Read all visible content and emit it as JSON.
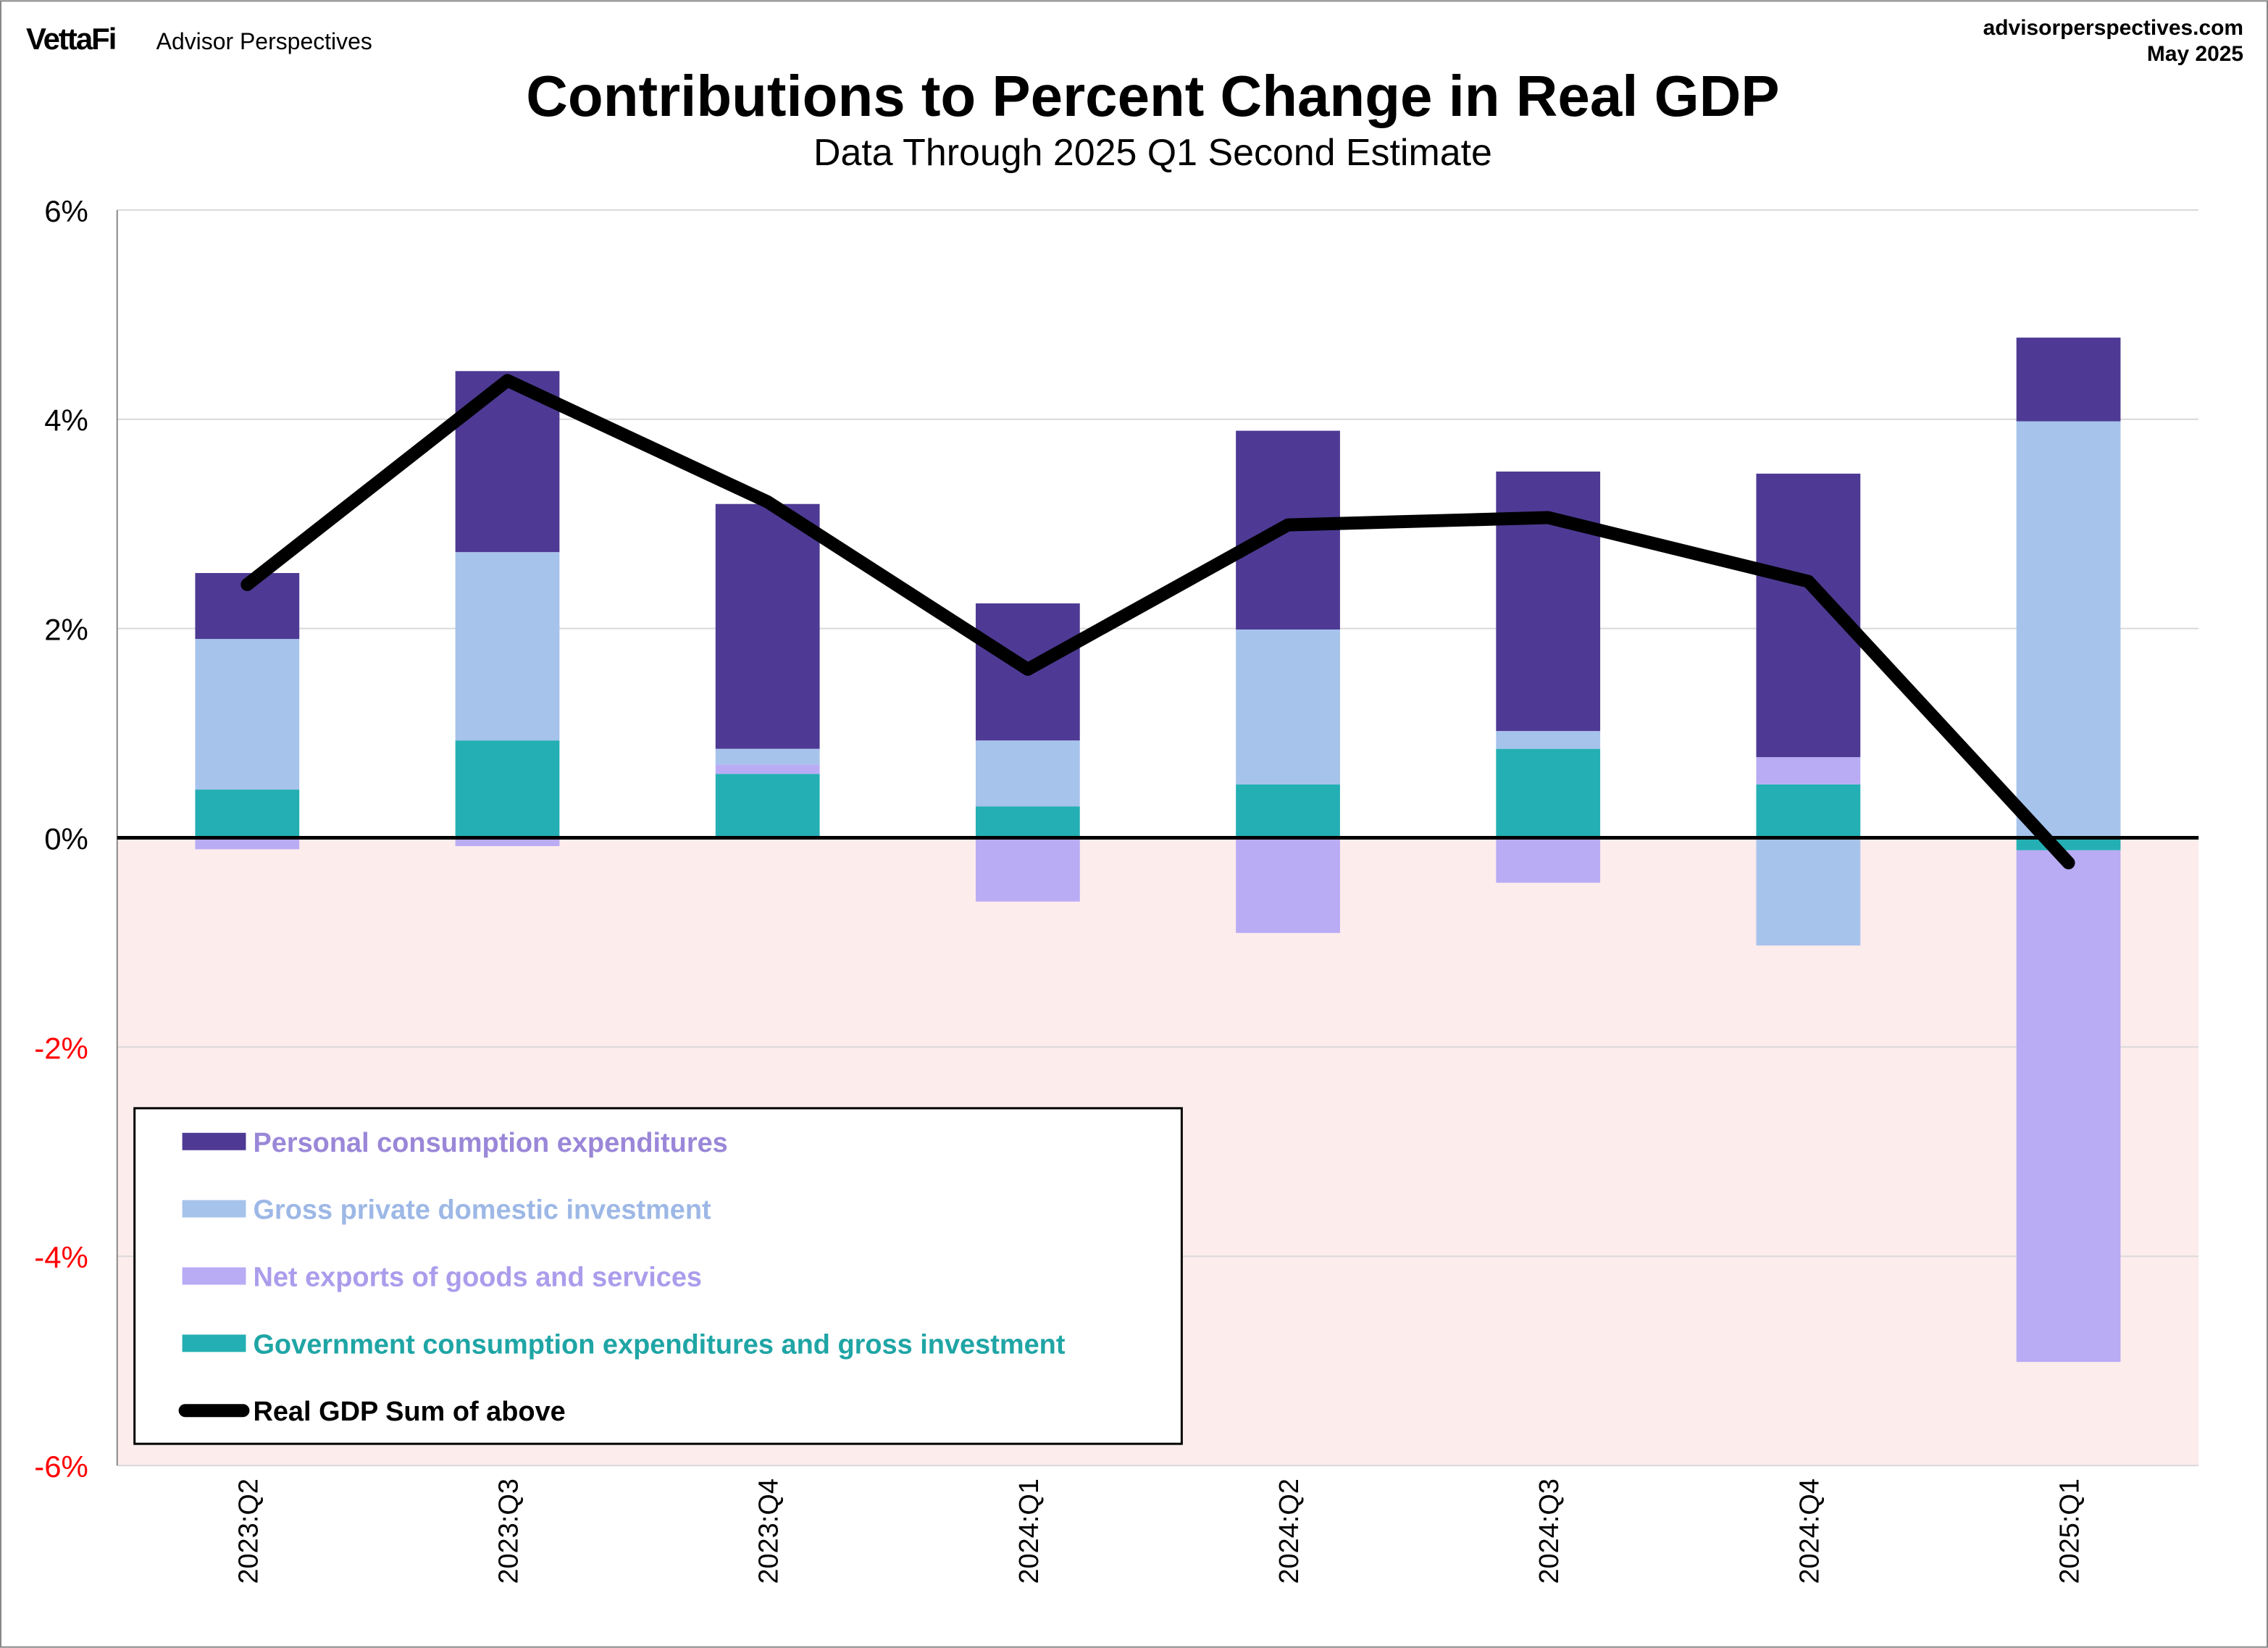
{
  "header": {
    "logo_brand": "VettaFi",
    "logo_sub": "Advisor Perspectives",
    "site": "advisorperspectives.com",
    "date": "May 2025"
  },
  "chart_data": {
    "type": "bar",
    "stacked": true,
    "title": "Contributions to Percent Change in Real GDP",
    "subtitle": "Data Through 2025 Q1 Second Estimate",
    "xlabel": "",
    "ylabel": "",
    "ylim": [
      -6,
      6
    ],
    "yticks": [
      6,
      4,
      2,
      0,
      -2,
      -4,
      -6
    ],
    "ytick_labels": [
      "6%",
      "4%",
      "2%",
      "0%",
      "-2%",
      "-4%",
      "-6%"
    ],
    "negative_tick_color": "#ff0000",
    "negative_region_color": "#fdecec",
    "grid": true,
    "legend_placement": "bottom-left",
    "categories": [
      "2023:Q2",
      "2023:Q3",
      "2023:Q4",
      "2024:Q1",
      "2024:Q2",
      "2024:Q3",
      "2024:Q4",
      "2025:Q1"
    ],
    "series": [
      {
        "name": "Personal consumption expenditures",
        "color": "#4e3a94",
        "label_color": "#9a87d8",
        "values": [
          0.63,
          1.73,
          2.34,
          1.31,
          1.9,
          2.48,
          2.71,
          0.8
        ]
      },
      {
        "name": "Gross private domestic investment",
        "color": "#a6c3ec",
        "label_color": "#9db8e6",
        "values": [
          1.44,
          1.8,
          0.15,
          0.63,
          1.48,
          0.17,
          -1.03,
          3.98
        ]
      },
      {
        "name": "Net exports of goods and services",
        "color": "#b9acf5",
        "label_color": "#ab9cec",
        "values": [
          -0.11,
          -0.08,
          0.09,
          -0.61,
          -0.91,
          -0.43,
          0.26,
          -4.89
        ]
      },
      {
        "name": "Government consumption expenditures and gross investment",
        "color": "#24afb4",
        "label_color": "#1fa5a5",
        "values": [
          0.46,
          0.93,
          0.61,
          0.3,
          0.51,
          0.85,
          0.51,
          -0.12
        ]
      }
    ],
    "line": {
      "name": "Real GDP Sum of above",
      "color": "#000000",
      "values": [
        2.42,
        4.37,
        3.21,
        1.61,
        2.99,
        3.06,
        2.45,
        -0.24
      ]
    }
  }
}
